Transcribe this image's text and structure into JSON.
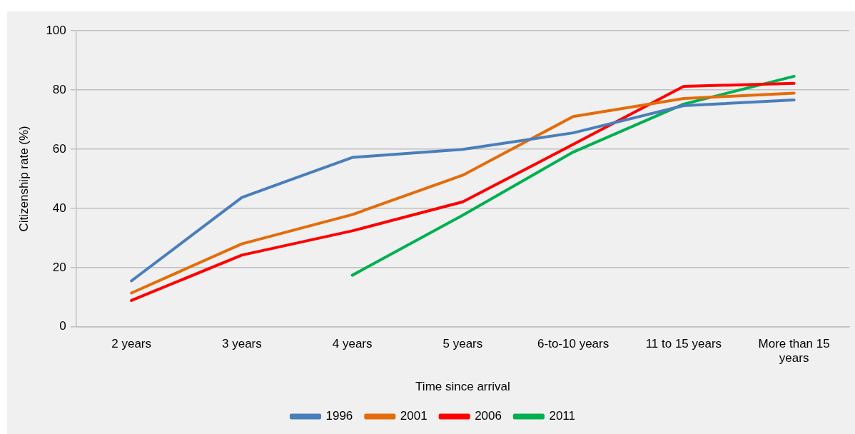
{
  "chart_data": {
    "type": "line",
    "xlabel": "Time since arrival",
    "ylabel": "Citizenship rate (%)",
    "categories": [
      "2 years",
      "3 years",
      "4 years",
      "5 years",
      "6-to-10 years",
      "11 to 15 years",
      "More than 15 years"
    ],
    "series": [
      {
        "name": "1996",
        "color": "#4a7ebb",
        "values": [
          15.5,
          43.7,
          57.2,
          59.9,
          65.5,
          74.7,
          76.6
        ]
      },
      {
        "name": "2001",
        "color": "#e46c0a",
        "values": [
          11.4,
          28.0,
          37.9,
          51.2,
          71.0,
          77.1,
          78.9
        ]
      },
      {
        "name": "2006",
        "color": "#ff0000",
        "values": [
          8.9,
          24.2,
          32.4,
          42.2,
          61.6,
          81.2,
          82.2
        ]
      },
      {
        "name": "2011",
        "color": "#00b050",
        "values": [
          null,
          null,
          17.4,
          37.7,
          59.0,
          75.2,
          84.6
        ]
      }
    ],
    "ylim": [
      0,
      100
    ],
    "yticks": [
      0,
      20,
      40,
      60,
      80,
      100
    ],
    "grid": "y",
    "legend": "bottom",
    "marker": "none",
    "line_style": "solid"
  }
}
